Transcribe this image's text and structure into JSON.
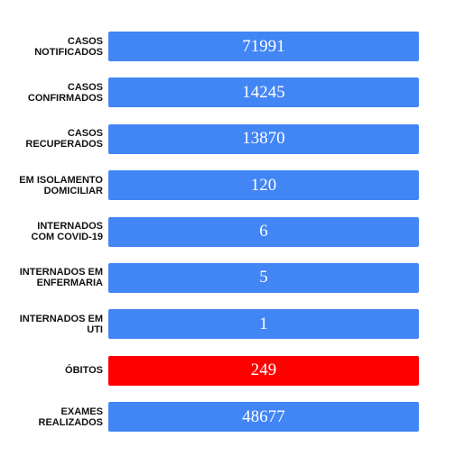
{
  "rows": [
    {
      "label": "CASOS\nNOTIFICADOS",
      "value": "71991",
      "color": "#4285f4"
    },
    {
      "label": "CASOS\nCONFIRMADOS",
      "value": "14245",
      "color": "#4285f4"
    },
    {
      "label": "CASOS\nRECUPERADOS",
      "value": "13870",
      "color": "#4285f4"
    },
    {
      "label": "EM ISOLAMENTO\nDOMICILIAR",
      "value": "120",
      "color": "#4285f4"
    },
    {
      "label": "INTERNADOS\nCOM COVID-19",
      "value": "6",
      "color": "#4285f4"
    },
    {
      "label": "INTERNADOS EM\nENFERMARIA",
      "value": "5",
      "color": "#4285f4"
    },
    {
      "label": "INTERNADOS EM\nUTI",
      "value": "1",
      "color": "#4285f4"
    },
    {
      "label": "ÓBITOS",
      "value": "249",
      "color": "#ff0000"
    },
    {
      "label": "EXAMES\nREALIZADOS",
      "value": "48677",
      "color": "#4285f4"
    }
  ]
}
